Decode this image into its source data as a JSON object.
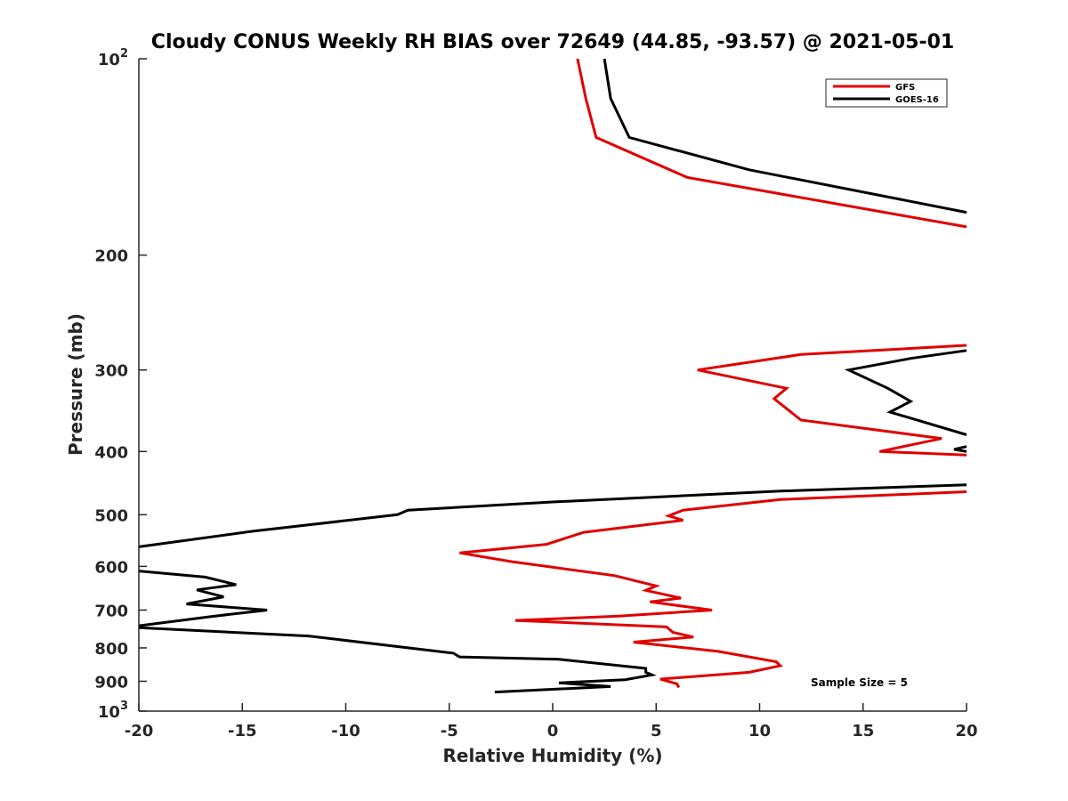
{
  "chart_data": {
    "type": "line",
    "title": "Cloudy CONUS Weekly RH BIAS over 72649 (44.85, -93.57) @ 2021-05-01",
    "xlabel": "Relative Humidity (%)",
    "ylabel": "Pressure (mb)",
    "xlim": [
      -20,
      20
    ],
    "ylim": [
      100,
      1000
    ],
    "y_scale": "log",
    "y_reversed": true,
    "grid": false,
    "legend_position": "top-right",
    "x_ticks": [
      -20,
      -15,
      -10,
      -5,
      0,
      5,
      10,
      15,
      20
    ],
    "x_tick_labels": [
      "-20",
      "-15",
      "-10",
      "-5",
      "0",
      "5",
      "10",
      "15",
      "20"
    ],
    "y_ticks": [
      100,
      200,
      300,
      400,
      500,
      600,
      700,
      800,
      900,
      1000
    ],
    "y_tick_labels": [
      {
        "base": "10",
        "exp": "2"
      },
      {
        "base": "200",
        "exp": ""
      },
      {
        "base": "300",
        "exp": ""
      },
      {
        "base": "400",
        "exp": ""
      },
      {
        "base": "500",
        "exp": ""
      },
      {
        "base": "600",
        "exp": ""
      },
      {
        "base": "700",
        "exp": ""
      },
      {
        "base": "800",
        "exp": ""
      },
      {
        "base": "900",
        "exp": ""
      },
      {
        "base": "10",
        "exp": "3"
      }
    ],
    "annotation": "Sample Size = 5",
    "series": [
      {
        "name": "GFS",
        "color": "#e00000",
        "segments": [
          [
            [
              1.2,
              100
            ],
            [
              1.6,
              115
            ],
            [
              2.1,
              132
            ],
            [
              6.5,
              152
            ],
            [
              20,
              181
            ]
          ],
          [
            [
              20,
              275
            ],
            [
              12,
              284
            ],
            [
              7,
              300
            ],
            [
              11.3,
              320
            ],
            [
              10.7,
              332
            ],
            [
              12.0,
              358
            ],
            [
              18.8,
              382
            ],
            [
              15.8,
              400
            ],
            [
              20,
              405
            ]
          ],
          [
            [
              20,
              461
            ],
            [
              11,
              474
            ],
            [
              6.3,
              492
            ],
            [
              5.6,
              502
            ],
            [
              6.3,
              510
            ],
            [
              1.5,
              532
            ],
            [
              -0.3,
              555
            ],
            [
              -4.5,
              572
            ],
            [
              -2,
              590
            ],
            [
              3,
              620
            ],
            [
              5,
              643
            ],
            [
              4.5,
              653
            ],
            [
              6.2,
              671
            ],
            [
              4.7,
              680
            ],
            [
              7.7,
              700
            ],
            [
              3.2,
              715
            ],
            [
              -1.8,
              726
            ],
            [
              5.5,
              743
            ],
            [
              5.8,
              757
            ],
            [
              6.8,
              770
            ],
            [
              3.9,
              784
            ],
            [
              8,
              810
            ],
            [
              10.8,
              840
            ],
            [
              11,
              852
            ],
            [
              9.5,
              872
            ],
            [
              5.2,
              893
            ],
            [
              6,
              908
            ],
            [
              6.1,
              920
            ]
          ]
        ]
      },
      {
        "name": "GOES-16",
        "color": "#000000",
        "segments": [
          [
            [
              2.5,
              100
            ],
            [
              2.8,
              115
            ],
            [
              3.7,
              132
            ],
            [
              9.5,
              148
            ],
            [
              20,
              172
            ]
          ],
          [
            [
              20,
              280
            ],
            [
              17.3,
              288
            ],
            [
              14.3,
              300
            ],
            [
              16.2,
              320
            ],
            [
              17.3,
              335
            ],
            [
              16.3,
              348
            ],
            [
              20,
              377
            ]
          ],
          [
            [
              20,
              393
            ],
            [
              19.4,
              397
            ],
            [
              20,
              400
            ]
          ],
          [
            [
              20,
              450
            ],
            [
              11,
              460
            ],
            [
              0,
              478
            ],
            [
              -7,
              492
            ],
            [
              -7.5,
              500
            ],
            [
              -14.5,
              530
            ],
            [
              -20,
              560
            ]
          ],
          [
            [
              -20,
              610
            ],
            [
              -16.8,
              623
            ],
            [
              -15.3,
              640
            ],
            [
              -17.2,
              652
            ],
            [
              -15.9,
              668
            ],
            [
              -17.7,
              685
            ],
            [
              -13.8,
              700
            ],
            [
              -16.5,
              716
            ],
            [
              -20,
              740
            ]
          ],
          [
            [
              -20,
              745
            ],
            [
              -11.8,
              767
            ],
            [
              -4.8,
              815
            ],
            [
              -4.5,
              826
            ],
            [
              0.3,
              833
            ],
            [
              4.5,
              860
            ],
            [
              4.5,
              872
            ],
            [
              4.8,
              880
            ],
            [
              3.5,
              895
            ],
            [
              0.3,
              905
            ],
            [
              2.8,
              917
            ],
            [
              -2.8,
              935
            ]
          ]
        ]
      }
    ]
  }
}
